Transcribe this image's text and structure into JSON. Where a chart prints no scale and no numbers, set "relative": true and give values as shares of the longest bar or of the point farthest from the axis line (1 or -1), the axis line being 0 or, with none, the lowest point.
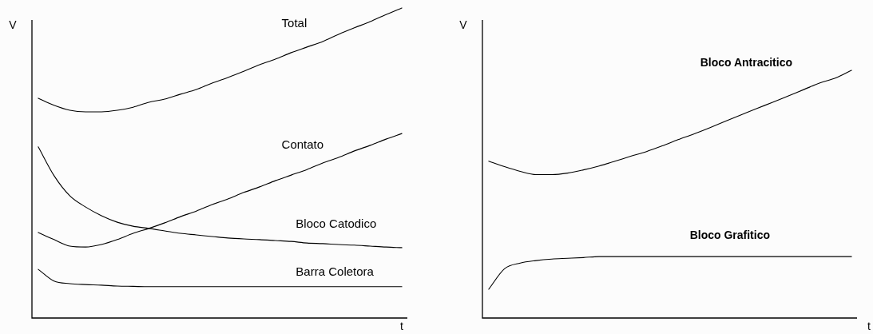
{
  "chart_data": [
    {
      "type": "line",
      "xlabel": "t",
      "ylabel": "V",
      "relative": true,
      "categories": [
        null,
        null,
        null,
        null,
        null,
        null,
        null,
        null,
        null,
        null,
        null,
        null,
        null,
        null,
        null,
        null,
        null,
        null,
        null,
        null,
        null,
        null,
        null,
        null
      ],
      "series": [
        {
          "name": "Total",
          "color": "#000000",
          "values": [
            0.709,
            0.686,
            0.67,
            0.665,
            0.665,
            0.67,
            0.68,
            0.696,
            0.706,
            0.722,
            0.737,
            0.758,
            0.776,
            0.796,
            0.817,
            0.835,
            0.856,
            0.874,
            0.892,
            0.915,
            0.936,
            0.956,
            0.979,
            1
          ]
        },
        {
          "name": "Contato",
          "color": "#000000",
          "values": [
            0.276,
            0.253,
            0.232,
            0.229,
            0.237,
            0.253,
            0.273,
            0.289,
            0.307,
            0.327,
            0.345,
            0.366,
            0.384,
            0.405,
            0.423,
            0.443,
            0.461,
            0.479,
            0.5,
            0.518,
            0.539,
            0.557,
            0.577,
            0.595
          ]
        },
        {
          "name": "Bloco Catodico",
          "color": "#000000",
          "values": [
            0.552,
            0.459,
            0.394,
            0.358,
            0.33,
            0.309,
            0.296,
            0.289,
            0.281,
            0.273,
            0.268,
            0.263,
            0.258,
            0.255,
            0.253,
            0.25,
            0.247,
            0.242,
            0.24,
            0.237,
            0.235,
            0.232,
            0.229,
            0.227
          ]
        },
        {
          "name": "Barra Coletora",
          "color": "#000000",
          "values": [
            0.157,
            0.119,
            0.111,
            0.108,
            0.106,
            0.103,
            0.102,
            0.101,
            0.101,
            0.101,
            0.101,
            0.101,
            0.101,
            0.101,
            0.101,
            0.101,
            0.101,
            0.101,
            0.101,
            0.101,
            0.101,
            0.101,
            0.101,
            0.101
          ]
        }
      ]
    },
    {
      "type": "line",
      "xlabel": "t",
      "ylabel": "V",
      "relative": true,
      "categories": [
        null,
        null,
        null,
        null,
        null,
        null,
        null,
        null,
        null,
        null,
        null,
        null,
        null,
        null,
        null,
        null,
        null,
        null,
        null,
        null,
        null,
        null,
        null,
        null
      ],
      "series": [
        {
          "name": "Bloco Antracitico",
          "color": "#000000",
          "values": [
            0.633,
            0.611,
            0.592,
            0.579,
            0.579,
            0.585,
            0.598,
            0.614,
            0.633,
            0.653,
            0.672,
            0.695,
            0.72,
            0.743,
            0.768,
            0.794,
            0.82,
            0.846,
            0.871,
            0.897,
            0.923,
            0.949,
            0.969,
            1
          ]
        },
        {
          "name": "Bloco Grafitico",
          "color": "#000000",
          "values": [
            0.116,
            0.199,
            0.222,
            0.232,
            0.238,
            0.241,
            0.244,
            0.248,
            0.248,
            0.248,
            0.248,
            0.248,
            0.248,
            0.248,
            0.248,
            0.248,
            0.248,
            0.248,
            0.248,
            0.248,
            0.248,
            0.248,
            0.248,
            0.248
          ]
        }
      ]
    }
  ]
}
